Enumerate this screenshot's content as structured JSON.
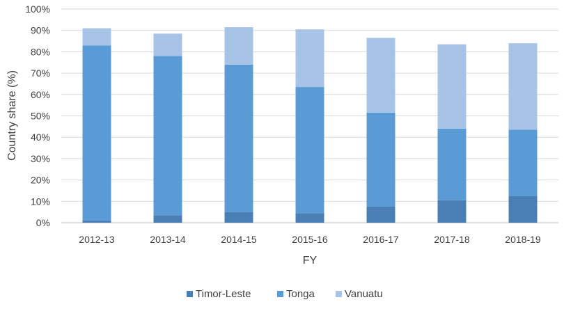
{
  "chart_data": {
    "type": "bar",
    "stacked": true,
    "categories": [
      "2012-13",
      "2013-14",
      "2014-15",
      "2015-16",
      "2016-17",
      "2017-18",
      "2018-19"
    ],
    "series": [
      {
        "name": "Timor-Leste",
        "color": "#4a7fb5",
        "values": [
          1,
          3.5,
          5,
          4.5,
          7.5,
          10.5,
          12.5
        ]
      },
      {
        "name": "Tonga",
        "color": "#5b9bd5",
        "values": [
          82,
          74.5,
          69,
          59,
          44,
          33.5,
          31
        ]
      },
      {
        "name": "Vanuatu",
        "color": "#a7c4e6",
        "values": [
          8,
          10.5,
          17.5,
          27,
          35,
          39.5,
          40.5
        ]
      }
    ],
    "xlabel": "FY",
    "ylabel": "Country share (%)",
    "ylim": [
      0,
      100
    ],
    "yticks": [
      "0%",
      "10%",
      "20%",
      "30%",
      "40%",
      "50%",
      "60%",
      "70%",
      "80%",
      "90%",
      "100%"
    ],
    "grid": true,
    "legend_position": "bottom"
  }
}
